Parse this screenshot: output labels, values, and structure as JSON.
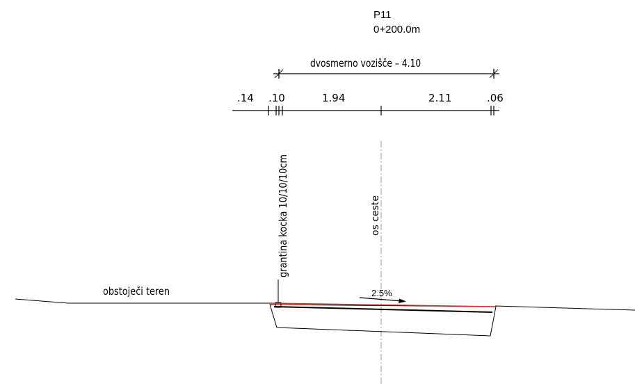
{
  "profile": {
    "name": "P11",
    "station": "0+200.0m"
  },
  "overall_dimension": {
    "label": "dvosmerno vozišče – 4.10"
  },
  "dimensions": [
    ".14",
    ".10",
    "1.94",
    "2.11",
    ".06"
  ],
  "annotations": {
    "curb": "grantina kocka 10/10/10cm",
    "axis": "os ceste",
    "terrain": "obstoječi teren",
    "slope": "2.5%"
  },
  "colors": {
    "lines": "#000000",
    "pavement_surface": "#e0281e",
    "axis_line": "#9a9a9a"
  }
}
